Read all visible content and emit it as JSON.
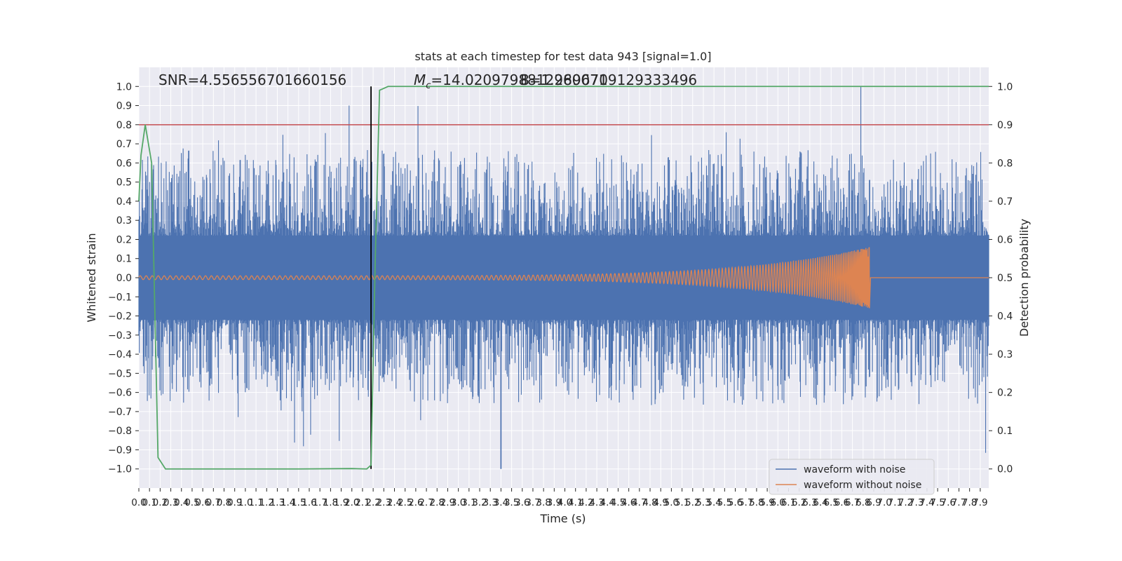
{
  "chart_data": {
    "type": "line",
    "title": "stats at each timestep for test data 943 [signal=1.0]",
    "xlabel": "Time (s)",
    "ylabel_left": "Whitened strain",
    "ylabel_right": "Detection probability",
    "xlim": [
      0.0,
      7.98
    ],
    "ylim_left": [
      -1.1,
      1.1
    ],
    "ylim_right": [
      -0.05,
      1.05
    ],
    "x_ticks": [
      "0.0",
      "0.1",
      "0.2",
      "0.3",
      "0.4",
      "0.5",
      "0.6",
      "0.7",
      "0.8",
      "0.9",
      "1.0",
      "1.1",
      "1.2",
      "1.3",
      "1.4",
      "1.5",
      "1.6",
      "1.7",
      "1.8",
      "1.9",
      "2.0",
      "2.1",
      "2.2",
      "2.3",
      "2.4",
      "2.5",
      "2.6",
      "2.7",
      "2.8",
      "2.9",
      "3.0",
      "3.1",
      "3.2",
      "3.3",
      "3.4",
      "3.5",
      "3.6",
      "3.7",
      "3.8",
      "3.9",
      "4.0",
      "4.1",
      "4.2",
      "4.3",
      "4.4",
      "4.5",
      "4.6",
      "4.7",
      "4.8",
      "4.9",
      "5.0",
      "5.1",
      "5.2",
      "5.3",
      "5.4",
      "5.5",
      "5.6",
      "5.7",
      "5.8",
      "5.9",
      "6.0",
      "6.1",
      "6.2",
      "6.3",
      "6.4",
      "6.5",
      "6.6",
      "6.7",
      "6.8",
      "6.9",
      "7.0",
      "7.1",
      "7.2",
      "7.3",
      "7.4",
      "7.5",
      "7.6",
      "7.7",
      "7.8",
      "7.9"
    ],
    "y_ticks_left": [
      "1.0",
      "0.9",
      "0.8",
      "0.7",
      "0.6",
      "0.5",
      "0.4",
      "0.3",
      "0.2",
      "0.1",
      "0.0",
      "−0.1",
      "−0.2",
      "−0.3",
      "−0.4",
      "−0.5",
      "−0.6",
      "−0.7",
      "−0.8",
      "−0.9",
      "−1.0"
    ],
    "y_ticks_right": [
      "1.0",
      "0.9",
      "0.8",
      "0.7",
      "0.6",
      "0.5",
      "0.4",
      "0.3",
      "0.2",
      "0.1",
      "0.0"
    ],
    "annotations": {
      "snr": "SNR=4.556556701660156",
      "mc_prefix": "M",
      "mc_sub": "c",
      "mc_value": "=14.0209798812960071",
      "overlap_text": "8=1.2896709129333496"
    },
    "vline_x": 2.18,
    "threshold_y_right": 0.9,
    "series": [
      {
        "name": "waveform with noise",
        "color": "#4c72b0"
      },
      {
        "name": "waveform without noise",
        "color": "#dd8452"
      }
    ],
    "chirp": {
      "start_x": 0.0,
      "merger_x": 6.86,
      "start_amp": 0.01,
      "peak_amp": 0.16,
      "ringdown_end_x": 6.87
    },
    "detection_probability": {
      "color": "#55a868",
      "x": [
        0.0,
        0.02,
        0.06,
        0.12,
        0.18,
        0.25,
        0.3,
        0.5,
        1.0,
        1.5,
        2.0,
        2.14,
        2.18,
        2.22,
        2.26,
        2.34,
        2.4,
        3.0,
        4.0,
        5.0,
        6.0,
        7.0,
        7.98
      ],
      "y": [
        0.7,
        0.82,
        0.9,
        0.8,
        0.03,
        0.0,
        0.0,
        0.0,
        0.0,
        0.0,
        0.001,
        0.0,
        0.01,
        0.55,
        0.99,
        1.0,
        1.0,
        1.0,
        1.0,
        1.0,
        1.0,
        1.0,
        1.0
      ]
    },
    "noise_summary": {
      "core_amp": 0.22,
      "typical_extent": [
        -0.5,
        0.5
      ],
      "max": 1.0,
      "min": -1.0,
      "max_at_x": 6.78,
      "min_at_x": 3.4
    },
    "legend": {
      "position": "lower-right"
    },
    "grid": true,
    "colors": {
      "axes_bg": "#eaeaf2",
      "grid": "#ffffff",
      "threshold": "#c44e52",
      "vline": "#000000"
    }
  }
}
